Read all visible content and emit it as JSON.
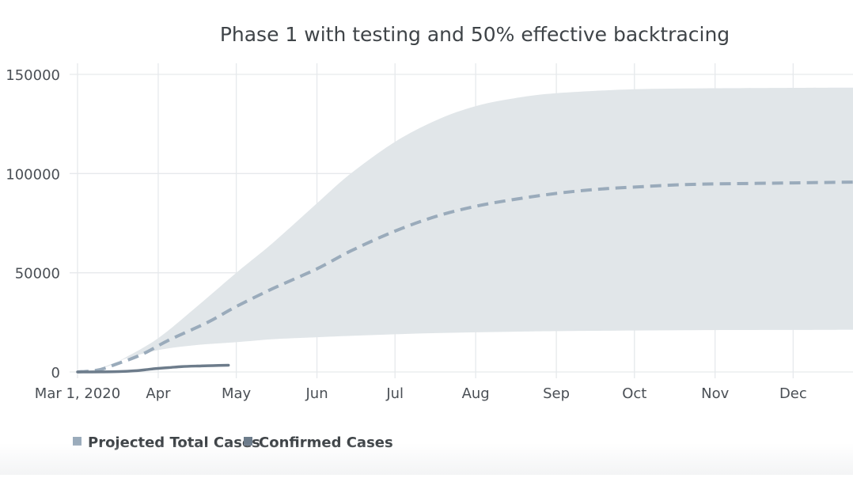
{
  "chart_data": {
    "type": "line",
    "title": "Phase 1 with testing and 50% effective backtracing",
    "xlabel": "",
    "ylabel": "",
    "y_ticks": [
      0,
      50000,
      100000,
      150000
    ],
    "y_tick_labels": [
      "0",
      "50000",
      "100000",
      "150000"
    ],
    "ylim": [
      0,
      150000
    ],
    "x_tick_labels": [
      "Mar 1, 2020",
      "Apr",
      "May",
      "Jun",
      "Jul",
      "Aug",
      "Sep",
      "Oct",
      "Nov",
      "Dec"
    ],
    "x_tick_days": [
      0,
      31,
      61,
      92,
      122,
      153,
      184,
      214,
      245,
      275
    ],
    "xlim_days": [
      0,
      298
    ],
    "grid": true,
    "legend": [
      "Projected Total Cases",
      "Confirmed Cases"
    ],
    "legend_position": "bottom-left",
    "colors": {
      "band": "#e1e6e9",
      "projected": "#9aabbb",
      "confirmed": "#6d7c8b",
      "grid": "#e6e9ec",
      "axis_text": "#4a4f55",
      "title": "#3f4448"
    },
    "series": [
      {
        "name": "Projected Total Cases (upper bound)",
        "style": "band-upper",
        "x": [
          0,
          6,
          12,
          18,
          31,
          45,
          61,
          75,
          92,
          105,
          122,
          138,
          153,
          168,
          184,
          214,
          245,
          275,
          298
        ],
        "values": [
          0,
          1000,
          3500,
          7000,
          17000,
          32000,
          50000,
          65000,
          85000,
          100000,
          116000,
          127000,
          134000,
          138000,
          140500,
          142500,
          143000,
          143200,
          143300
        ]
      },
      {
        "name": "Projected Total Cases (lower bound)",
        "style": "band-lower",
        "x": [
          0,
          6,
          12,
          18,
          31,
          45,
          61,
          75,
          92,
          105,
          122,
          138,
          153,
          168,
          184,
          214,
          245,
          275,
          298
        ],
        "values": [
          0,
          700,
          3000,
          6500,
          11000,
          13500,
          15000,
          16500,
          17500,
          18200,
          19000,
          19600,
          20000,
          20300,
          20600,
          20900,
          21100,
          21200,
          21300
        ]
      },
      {
        "name": "Projected Total Cases",
        "style": "dashed",
        "x": [
          0,
          8,
          15,
          25,
          35,
          50,
          61,
          75,
          92,
          105,
          122,
          138,
          153,
          168,
          184,
          199,
          214,
          230,
          245,
          275,
          298
        ],
        "values": [
          0,
          1000,
          4000,
          9000,
          16000,
          25000,
          33000,
          42000,
          52000,
          61000,
          71000,
          78500,
          83500,
          87000,
          90000,
          92000,
          93200,
          94300,
          94800,
          95300,
          95700
        ]
      },
      {
        "name": "Confirmed Cases",
        "style": "solid",
        "x": [
          0,
          10,
          16,
          22,
          26,
          30,
          35,
          40,
          46,
          52,
          58
        ],
        "values": [
          0,
          50,
          200,
          600,
          1100,
          1700,
          2200,
          2700,
          3000,
          3200,
          3400
        ]
      }
    ]
  }
}
